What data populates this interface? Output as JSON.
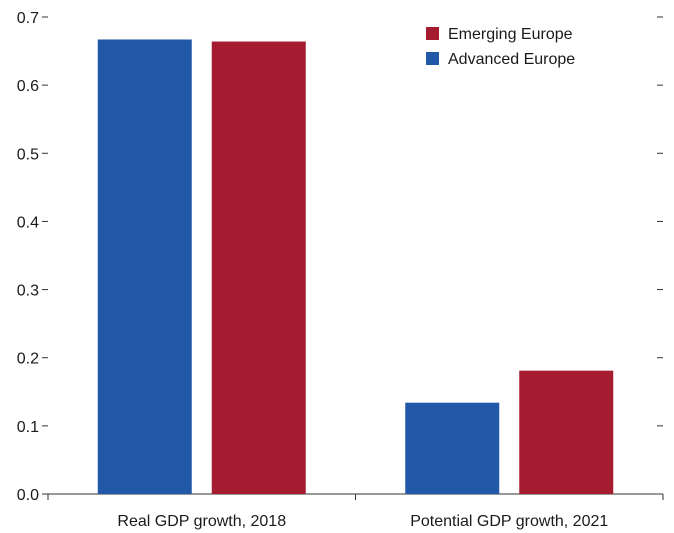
{
  "chart_data": {
    "type": "bar",
    "categories": [
      "Real GDP growth, 2018",
      "Potential GDP growth, 2021"
    ],
    "series": [
      {
        "name": "Advanced Europe",
        "values": [
          0.667,
          0.134
        ],
        "color": "#2158a8"
      },
      {
        "name": "Emerging Europe",
        "values": [
          0.664,
          0.181
        ],
        "color": "#a51c30"
      }
    ],
    "yticks": [
      "0.0",
      "0.1",
      "0.2",
      "0.3",
      "0.4",
      "0.5",
      "0.6",
      "0.7"
    ],
    "ylim": [
      0,
      0.7
    ],
    "grid": false,
    "legend": {
      "placement": "top-right",
      "entries": [
        {
          "label": "Emerging Europe",
          "color": "#a51c30"
        },
        {
          "label": "Advanced Europe",
          "color": "#2158a8"
        }
      ]
    }
  }
}
